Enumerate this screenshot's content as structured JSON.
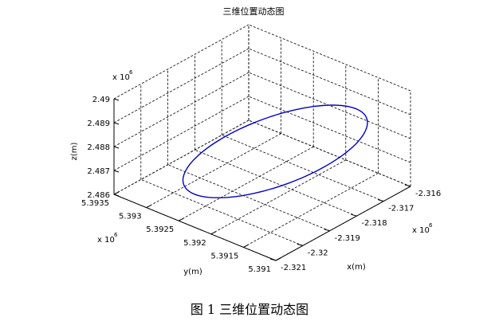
{
  "chart_data": {
    "type": "line3d",
    "title": "三维位置动态图",
    "xlabel": "x(m)",
    "ylabel": "y(m)",
    "zlabel": "z(m)",
    "x_exponent_label": "x 10",
    "x_exponent_power": "6",
    "y_exponent_label": "x 10",
    "y_exponent_power": "6",
    "z_exponent_label": "x 10",
    "z_exponent_power": "6",
    "xlim": [
      -2.321,
      -2.316
    ],
    "ylim": [
      5.391,
      5.3935
    ],
    "zlim": [
      2.486,
      2.49
    ],
    "x_ticks": [
      "-2.321",
      "-2.32",
      "-2.319",
      "-2.318",
      "-2.317",
      "-2.316"
    ],
    "y_ticks": [
      "5.391",
      "5.3915",
      "5.392",
      "5.3925",
      "5.393",
      "5.3935"
    ],
    "z_ticks": [
      "2.486",
      "2.487",
      "2.488",
      "2.489",
      "2.49"
    ],
    "grid": true,
    "line_color": "#0000cc",
    "series": [
      {
        "shape": "ellipse",
        "center": {
          "x": -2.3185,
          "y": 5.39205,
          "z": 2.48785
        },
        "note_values": "closed elliptical trajectory"
      }
    ]
  },
  "caption": "图 1  三维位置动态图"
}
